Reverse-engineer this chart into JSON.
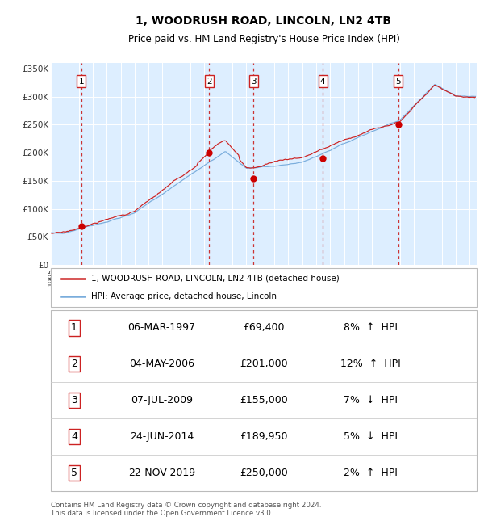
{
  "title": "1, WOODRUSH ROAD, LINCOLN, LN2 4TB",
  "subtitle": "Price paid vs. HM Land Registry's House Price Index (HPI)",
  "title_fontsize": 10,
  "subtitle_fontsize": 8.5,
  "ylim": [
    0,
    360000
  ],
  "yticks": [
    0,
    50000,
    100000,
    150000,
    200000,
    250000,
    300000,
    350000
  ],
  "ytick_labels": [
    "£0",
    "£50K",
    "£100K",
    "£150K",
    "£200K",
    "£250K",
    "£300K",
    "£350K"
  ],
  "xlim_start": 1995.0,
  "xlim_end": 2025.5,
  "hpi_color": "#7aaddc",
  "price_color": "#cc2222",
  "sale_marker_color": "#cc0000",
  "dashed_line_color": "#cc3333",
  "plot_bg_color": "#ddeeff",
  "legend1_label": "1, WOODRUSH ROAD, LINCOLN, LN2 4TB (detached house)",
  "legend2_label": "HPI: Average price, detached house, Lincoln",
  "sales": [
    {
      "num": 1,
      "date_str": "06-MAR-1997",
      "price": 69400,
      "year": 1997.18,
      "hpi_pct": "8%",
      "direction": "↑"
    },
    {
      "num": 2,
      "date_str": "04-MAY-2006",
      "price": 201000,
      "year": 2006.34,
      "hpi_pct": "12%",
      "direction": "↑"
    },
    {
      "num": 3,
      "date_str": "07-JUL-2009",
      "price": 155000,
      "year": 2009.52,
      "hpi_pct": "7%",
      "direction": "↓"
    },
    {
      "num": 4,
      "date_str": "24-JUN-2014",
      "price": 189950,
      "year": 2014.48,
      "hpi_pct": "5%",
      "direction": "↓"
    },
    {
      "num": 5,
      "date_str": "22-NOV-2019",
      "price": 250000,
      "year": 2019.89,
      "hpi_pct": "2%",
      "direction": "↑"
    }
  ],
  "footer_text": "Contains HM Land Registry data © Crown copyright and database right 2024.\nThis data is licensed under the Open Government Licence v3.0.",
  "grid_color": "#ffffff",
  "tick_label_color": "#333333"
}
